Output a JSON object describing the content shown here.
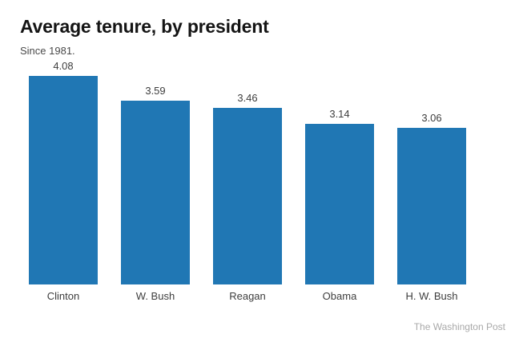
{
  "title": "Average tenure, by president",
  "subtitle": "Since 1981.",
  "credit": "The Washington Post",
  "colors": {
    "bar": "#2077b4",
    "title": "#141414",
    "subtitle": "#4a4a4a",
    "labels": "#3d3d3d",
    "credit": "#a9a9a9",
    "background": "#ffffff"
  },
  "chart_data": {
    "type": "bar",
    "categories": [
      "Clinton",
      "W. Bush",
      "Reagan",
      "Obama",
      "H. W. Bush"
    ],
    "values": [
      4.08,
      3.59,
      3.46,
      3.14,
      3.06
    ],
    "value_label_format": "2-decimals",
    "title": "Average tenure, by president",
    "subtitle": "Since 1981.",
    "xlabel": "",
    "ylabel": "",
    "ylim": [
      0,
      4.3
    ],
    "grid": false,
    "axis_lines": false,
    "legend": "none",
    "value_labels_shown": true,
    "source_credit": "The Washington Post"
  }
}
